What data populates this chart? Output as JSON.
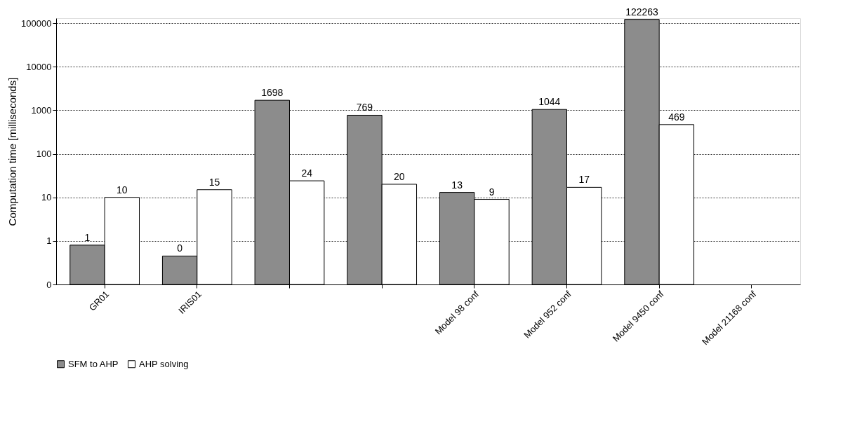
{
  "chart_data": {
    "type": "bar",
    "ylabel": "Computation time [milliseconds]",
    "categories": [
      "GR01",
      "IRIS01",
      null,
      null,
      "Model 98 conf",
      "Model 952 conf",
      "Model 9450 conf",
      "Model 21168 conf"
    ],
    "series": [
      {
        "name": "SFM to AHP",
        "color": "#8c8c8c",
        "values": [
          0.8,
          0.45,
          1698,
          769,
          13,
          1044,
          122263,
          null
        ],
        "value_labels": [
          "1",
          "0",
          "1698",
          "769",
          "13",
          "1044",
          "122263",
          null
        ]
      },
      {
        "name": "AHP solving",
        "color": "#ffffff",
        "values": [
          10,
          15,
          24,
          20,
          9,
          17,
          469,
          null
        ],
        "value_labels": [
          "10",
          "15",
          "24",
          "20",
          "9",
          "17",
          "469",
          null
        ]
      }
    ],
    "log": true,
    "ylim": [
      0.1,
      130000
    ],
    "yticks": [
      {
        "value": 0.1,
        "label": "0"
      },
      1,
      10,
      100,
      1000,
      10000,
      100000
    ],
    "grid": "y",
    "legend": "bottom"
  }
}
